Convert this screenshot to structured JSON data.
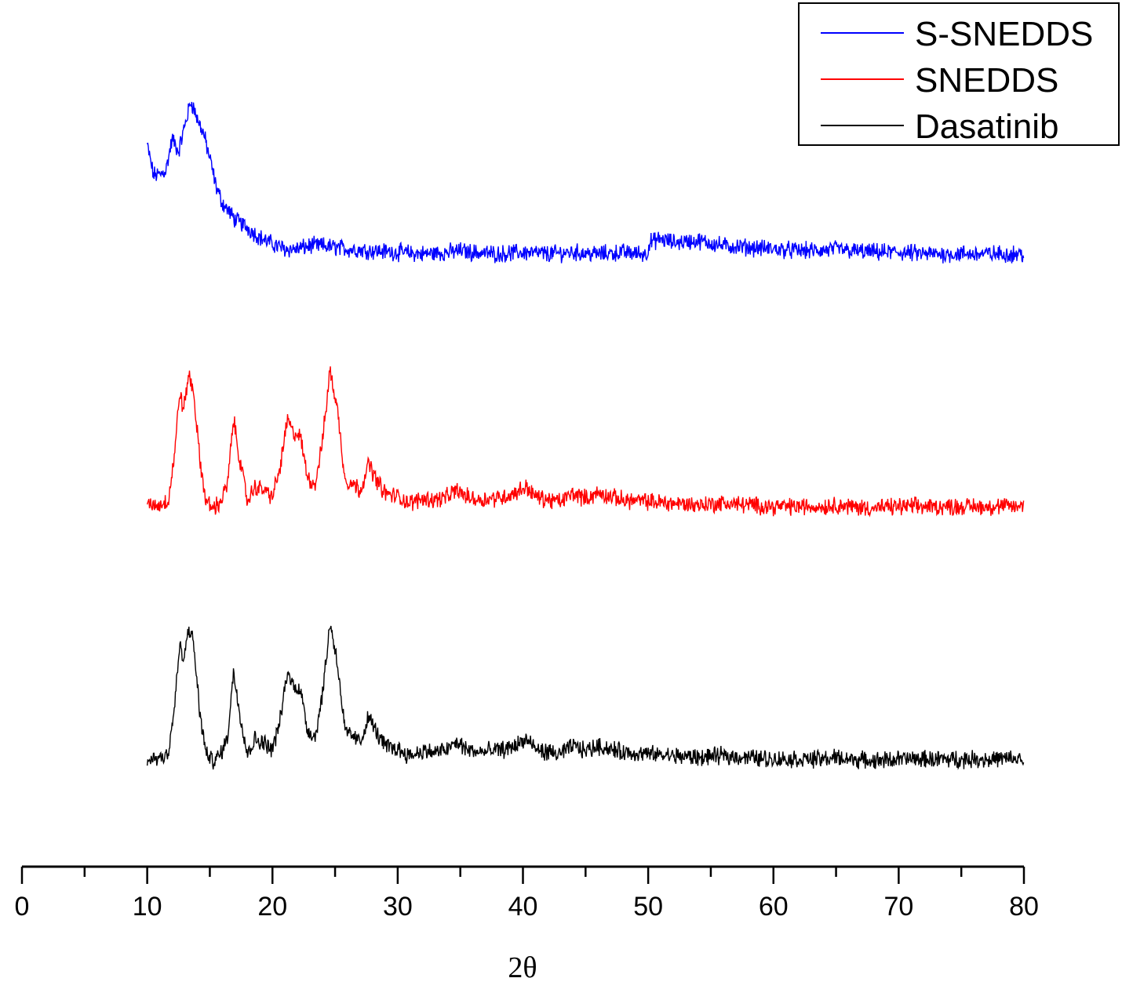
{
  "chart_data": {
    "type": "line",
    "xlabel": "2θ",
    "ylabel": "",
    "xlim": [
      0,
      80
    ],
    "x_ticks": [
      "0",
      "10",
      "20",
      "30",
      "40",
      "50",
      "60",
      "70",
      "80"
    ],
    "y_axis_visible": false,
    "grid": false,
    "legend_position": "top-right",
    "series": [
      {
        "name": "S-SNEDDS",
        "color": "#0000ff",
        "x": [
          10,
          10.5,
          11,
          11.5,
          12,
          12.5,
          13,
          13.5,
          14,
          14.5,
          15,
          15.5,
          16,
          17,
          18,
          19,
          20,
          21,
          22,
          23,
          24,
          25,
          26,
          28,
          30,
          32,
          34,
          35,
          36,
          38,
          40,
          42,
          44,
          46,
          48,
          49.9,
          50.1,
          51,
          52,
          54,
          56,
          58,
          60,
          62,
          64,
          65,
          66,
          68,
          70,
          72,
          74,
          76,
          78,
          80
        ],
        "values": [
          0.68,
          0.5,
          0.5,
          0.53,
          0.72,
          0.64,
          0.8,
          0.95,
          0.84,
          0.75,
          0.6,
          0.43,
          0.33,
          0.23,
          0.18,
          0.12,
          0.08,
          0.05,
          0.05,
          0.07,
          0.07,
          0.06,
          0.05,
          0.04,
          0.03,
          0.02,
          0.03,
          0.04,
          0.03,
          0.02,
          0.03,
          0.02,
          0.03,
          0.02,
          0.03,
          0.02,
          0.09,
          0.11,
          0.09,
          0.1,
          0.07,
          0.06,
          0.05,
          0.04,
          0.04,
          0.05,
          0.04,
          0.03,
          0.03,
          0.02,
          0.02,
          0.02,
          0.02,
          0.02
        ]
      },
      {
        "name": "SNEDDS",
        "color": "#ff0000",
        "x": [
          10,
          11,
          11.7,
          12.2,
          12.6,
          12.9,
          13.3,
          13.7,
          14.2,
          14.7,
          15.2,
          15.8,
          16.4,
          16.9,
          17.4,
          18,
          18.6,
          19.3,
          20,
          20.6,
          21.2,
          21.6,
          22.2,
          22.8,
          23.4,
          24,
          24.6,
          25.2,
          25.8,
          26.4,
          27,
          27.7,
          28.3,
          29,
          30,
          31,
          32,
          33,
          34,
          34.7,
          35.5,
          36.5,
          37.5,
          38.6,
          39.3,
          40.3,
          41,
          42,
          43,
          44,
          45,
          46,
          48,
          50,
          52,
          54,
          56,
          58,
          60,
          62,
          64,
          65,
          66,
          68,
          70,
          72,
          74,
          76,
          78,
          80
        ],
        "values": [
          0.02,
          0.03,
          0.06,
          0.35,
          0.72,
          0.6,
          0.82,
          0.72,
          0.3,
          0.05,
          0.01,
          0.04,
          0.15,
          0.55,
          0.3,
          0.05,
          0.14,
          0.12,
          0.08,
          0.25,
          0.55,
          0.47,
          0.45,
          0.2,
          0.15,
          0.42,
          0.85,
          0.6,
          0.18,
          0.16,
          0.12,
          0.28,
          0.18,
          0.1,
          0.08,
          0.04,
          0.07,
          0.06,
          0.08,
          0.12,
          0.08,
          0.06,
          0.07,
          0.08,
          0.1,
          0.14,
          0.08,
          0.06,
          0.05,
          0.1,
          0.07,
          0.1,
          0.06,
          0.05,
          0.04,
          0.03,
          0.04,
          0.03,
          0.02,
          0.02,
          0.02,
          0.03,
          0.02,
          0.01,
          0.02,
          0.02,
          0.02,
          0.02,
          0.02,
          0.02
        ]
      },
      {
        "name": "Dasatinib",
        "color": "#000000",
        "x": [
          10,
          11,
          11.7,
          12.2,
          12.6,
          12.9,
          13.3,
          13.7,
          14.2,
          14.7,
          15.2,
          15.8,
          16.4,
          16.9,
          17.4,
          18,
          18.6,
          19.3,
          20,
          20.6,
          21.2,
          21.6,
          22.2,
          22.8,
          23.4,
          24,
          24.6,
          25.2,
          25.8,
          26.4,
          27,
          27.7,
          28.3,
          29,
          30,
          31,
          32,
          33,
          34,
          34.7,
          35.5,
          36.5,
          37.5,
          38.6,
          39.3,
          40.3,
          41,
          42,
          43,
          44,
          45,
          46,
          48,
          50,
          52,
          54,
          56,
          58,
          60,
          62,
          64,
          65,
          66,
          68,
          70,
          72,
          74,
          76,
          78,
          80
        ],
        "values": [
          0.02,
          0.03,
          0.06,
          0.35,
          0.72,
          0.6,
          0.82,
          0.72,
          0.3,
          0.05,
          0.01,
          0.04,
          0.15,
          0.55,
          0.3,
          0.05,
          0.14,
          0.12,
          0.08,
          0.25,
          0.55,
          0.47,
          0.45,
          0.2,
          0.15,
          0.42,
          0.85,
          0.6,
          0.18,
          0.16,
          0.12,
          0.28,
          0.18,
          0.1,
          0.08,
          0.04,
          0.07,
          0.06,
          0.08,
          0.12,
          0.08,
          0.06,
          0.07,
          0.08,
          0.1,
          0.14,
          0.08,
          0.06,
          0.05,
          0.1,
          0.07,
          0.1,
          0.06,
          0.05,
          0.04,
          0.03,
          0.04,
          0.03,
          0.02,
          0.02,
          0.02,
          0.03,
          0.02,
          0.01,
          0.02,
          0.02,
          0.02,
          0.02,
          0.02,
          0.02
        ]
      }
    ]
  }
}
